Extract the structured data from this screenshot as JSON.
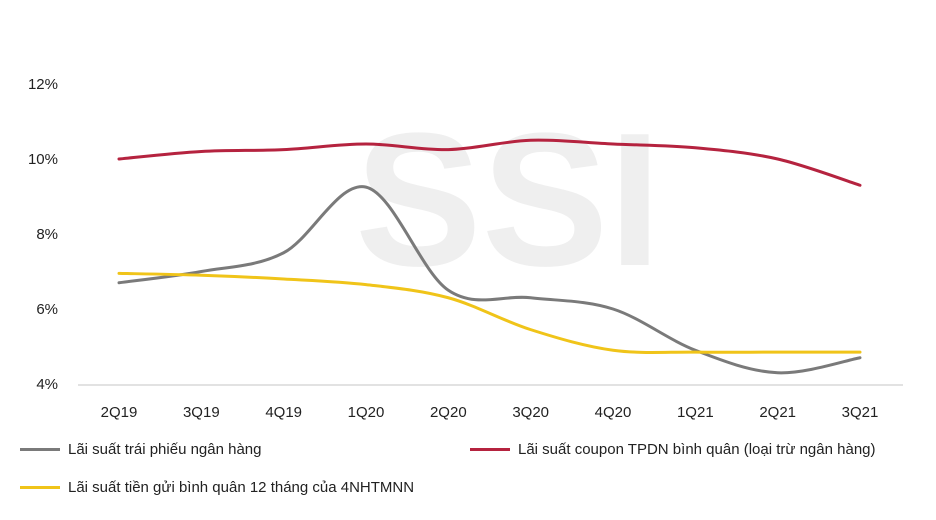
{
  "watermark": "SSI",
  "chart_data": {
    "type": "line",
    "categories": [
      "2Q19",
      "3Q19",
      "4Q19",
      "1Q20",
      "2Q20",
      "3Q20",
      "4Q20",
      "1Q21",
      "2Q21",
      "3Q21"
    ],
    "ylim": [
      4,
      12
    ],
    "yticks": [
      "4%",
      "6%",
      "8%",
      "10%",
      "12%"
    ],
    "ytick_values": [
      4,
      6,
      8,
      10,
      12
    ],
    "grid": false,
    "legend_placement": "bottom",
    "series": [
      {
        "name": "Lãi suất trái phiếu ngân hàng",
        "color": "#7a7a7a",
        "values": [
          6.7,
          7.0,
          7.5,
          9.25,
          6.5,
          6.3,
          6.0,
          4.9,
          4.3,
          4.7
        ]
      },
      {
        "name": "Lãi suất coupon TPDN bình quân (loại trừ ngân hàng)",
        "color": "#b5233f",
        "values": [
          10.0,
          10.2,
          10.25,
          10.4,
          10.25,
          10.5,
          10.4,
          10.3,
          10.0,
          9.3
        ]
      },
      {
        "name": "Lãi suất tiền gửi bình quân 12 tháng của 4NHTMNN",
        "color": "#f0c419",
        "values": [
          6.95,
          6.9,
          6.8,
          6.65,
          6.3,
          5.45,
          4.9,
          4.85,
          4.85,
          4.85
        ]
      }
    ]
  }
}
